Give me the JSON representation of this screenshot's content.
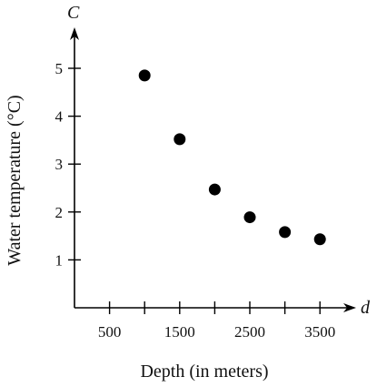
{
  "chart_data": {
    "type": "scatter",
    "title": "",
    "xlabel": "Depth (in meters)",
    "ylabel": "Water temperature (°C)",
    "x_axis_letter": "d",
    "y_axis_letter": "C",
    "xlim": [
      0,
      4000
    ],
    "ylim": [
      0,
      6
    ],
    "xticks": [
      500,
      1500,
      2500,
      3500
    ],
    "xticks_unlabeled": [
      1000,
      2000,
      3000
    ],
    "yticks": [
      1,
      2,
      3,
      4,
      5
    ],
    "grid": false,
    "series": [
      {
        "x": [
          1000,
          1500,
          2000,
          2500,
          3000,
          3500
        ],
        "y": [
          4.85,
          3.52,
          2.47,
          1.89,
          1.58,
          1.43
        ]
      }
    ],
    "colors": {
      "ink": "#000000",
      "background": "#ffffff"
    }
  }
}
